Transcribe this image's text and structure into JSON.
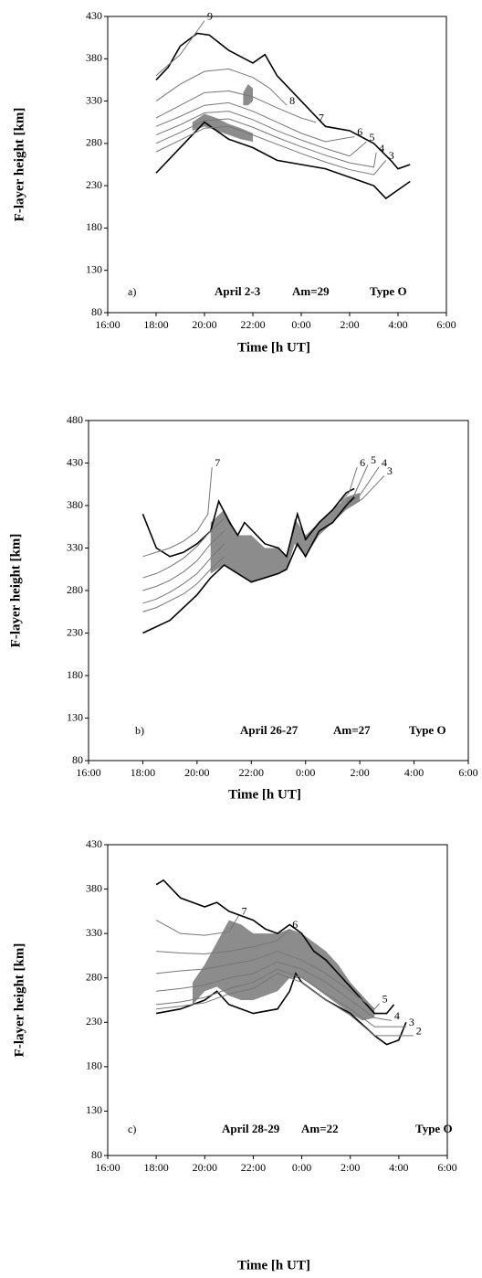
{
  "chart_data": [
    {
      "type": "line",
      "x_label": "Time [h UT]",
      "y_label": "F-layer height [km]",
      "xlim": [
        16,
        30
      ],
      "ylim": [
        80,
        430
      ],
      "xticks": [
        {
          "value": 16,
          "label": "16:00"
        },
        {
          "value": 18,
          "label": "18:00"
        },
        {
          "value": 20,
          "label": "20:00"
        },
        {
          "value": 22,
          "label": "22:00"
        },
        {
          "value": 24,
          "label": "0:00"
        },
        {
          "value": 26,
          "label": "2:00"
        },
        {
          "value": 28,
          "label": "4:00"
        },
        {
          "value": 30,
          "label": "6:00"
        }
      ],
      "yticks": [
        80,
        130,
        180,
        230,
        280,
        330,
        380,
        430
      ],
      "annotations": [
        "a)",
        "April 2-3",
        "Am=29",
        "Type O"
      ],
      "bands": [
        {
          "color": "#8c8c8c",
          "x": [
            19.5,
            20,
            20.5,
            21,
            21.5,
            22
          ],
          "high": [
            305,
            315,
            310,
            303,
            298,
            292
          ],
          "low": [
            295,
            300,
            295,
            290,
            285,
            282
          ]
        },
        {
          "color": "#8c8c8c",
          "x": [
            21.6,
            21.8,
            22
          ],
          "high": [
            340,
            350,
            345
          ],
          "low": [
            325,
            325,
            330
          ]
        }
      ],
      "series": [
        {
          "color": "#000000",
          "x": [
            18,
            18.5,
            19,
            19.7,
            20.2,
            21,
            22,
            22.5,
            23,
            24,
            25,
            26,
            27,
            27.7,
            28,
            28.5
          ],
          "values": [
            355,
            370,
            395,
            410,
            408,
            390,
            375,
            385,
            360,
            330,
            300,
            295,
            280,
            260,
            250,
            255
          ]
        },
        {
          "color": "#000000",
          "x": [
            18,
            19,
            20,
            21,
            22,
            23,
            24,
            25,
            26,
            27,
            27.5,
            28,
            28.5
          ],
          "values": [
            245,
            275,
            305,
            285,
            275,
            260,
            255,
            250,
            240,
            230,
            215,
            225,
            235
          ]
        },
        {
          "name": "9",
          "color": "#777777",
          "x": [
            18,
            19,
            19.5,
            20
          ],
          "values": [
            360,
            385,
            405,
            425
          ]
        },
        {
          "name": "8",
          "color": "#777777",
          "x": [
            18,
            19,
            20,
            21,
            22,
            22.7,
            23.4
          ],
          "values": [
            330,
            350,
            365,
            368,
            358,
            345,
            325
          ]
        },
        {
          "name": "7",
          "color": "#777777",
          "x": [
            18,
            19,
            20,
            21,
            22,
            23,
            24,
            24.6
          ],
          "values": [
            310,
            325,
            340,
            342,
            335,
            322,
            310,
            305
          ]
        },
        {
          "name": "6",
          "color": "#777777",
          "x": [
            18,
            19,
            20,
            21,
            22,
            23,
            24,
            25,
            26.2
          ],
          "values": [
            300,
            312,
            325,
            328,
            318,
            305,
            292,
            282,
            288
          ]
        },
        {
          "name": "5",
          "color": "#777777",
          "x": [
            18,
            19,
            20,
            21,
            22,
            23,
            24,
            25,
            26,
            26.7
          ],
          "values": [
            290,
            302,
            316,
            318,
            308,
            295,
            284,
            274,
            265,
            282
          ]
        },
        {
          "name": "4",
          "color": "#777777",
          "x": [
            18,
            19,
            20,
            21,
            22,
            23,
            24,
            25,
            26,
            27,
            27.1
          ],
          "values": [
            280,
            293,
            307,
            309,
            299,
            287,
            276,
            266,
            257,
            252,
            269
          ]
        },
        {
          "name": "3",
          "color": "#777777",
          "x": [
            18,
            19,
            20,
            21,
            22,
            23,
            24,
            25,
            26,
            27,
            27.5
          ],
          "values": [
            270,
            284,
            298,
            300,
            290,
            279,
            268,
            258,
            249,
            243,
            260
          ]
        }
      ]
    },
    {
      "type": "line",
      "x_label": "Time [h UT]",
      "y_label": "F-layer height [km]",
      "xlim": [
        16,
        30
      ],
      "ylim": [
        80,
        480
      ],
      "xticks": [
        {
          "value": 16,
          "label": "16:00"
        },
        {
          "value": 18,
          "label": "18:00"
        },
        {
          "value": 20,
          "label": "20:00"
        },
        {
          "value": 22,
          "label": "22:00"
        },
        {
          "value": 24,
          "label": "0:00"
        },
        {
          "value": 26,
          "label": "2:00"
        },
        {
          "value": 28,
          "label": "4:00"
        },
        {
          "value": 30,
          "label": "6:00"
        }
      ],
      "yticks": [
        80,
        130,
        180,
        230,
        280,
        330,
        380,
        430,
        480
      ],
      "annotations": [
        "b)",
        "April 26-27",
        "Am=27",
        "Type O"
      ],
      "bands": [
        {
          "color": "#8c8c8c",
          "x": [
            20.5,
            21,
            21.5,
            22,
            22.5,
            23,
            23.3,
            23.6,
            24,
            24.5,
            25,
            25.5,
            26
          ],
          "high": [
            360,
            375,
            345,
            345,
            330,
            330,
            320,
            365,
            345,
            360,
            375,
            390,
            395
          ],
          "low": [
            300,
            310,
            300,
            290,
            295,
            300,
            305,
            335,
            320,
            345,
            360,
            375,
            385
          ]
        }
      ],
      "series": [
        {
          "color": "#000000",
          "x": [
            18,
            18.5,
            19,
            19.5,
            20,
            20.5,
            20.8,
            21.2,
            21.5,
            21.75,
            22.5,
            23,
            23.3,
            23.7,
            24,
            24.5,
            25,
            25.5,
            25.8
          ],
          "values": [
            370,
            330,
            320,
            325,
            335,
            350,
            385,
            360,
            345,
            360,
            335,
            330,
            320,
            370,
            340,
            360,
            375,
            395,
            400
          ]
        },
        {
          "color": "#000000",
          "x": [
            18,
            19,
            20,
            20.5,
            21,
            21.5,
            22,
            22.5,
            23,
            23.3,
            23.7,
            24,
            24.5,
            25,
            25.5,
            25.8
          ],
          "values": [
            230,
            245,
            275,
            295,
            310,
            300,
            290,
            295,
            300,
            305,
            335,
            320,
            350,
            360,
            380,
            390
          ]
        },
        {
          "name": "7",
          "color": "#777777",
          "x": [
            18,
            18.5,
            19,
            19.5,
            20,
            20.4,
            20.55
          ],
          "values": [
            320,
            325,
            330,
            338,
            350,
            370,
            425
          ]
        },
        {
          "name": "6",
          "color": "#777777",
          "x": [
            18,
            18.5,
            19,
            19.5,
            20,
            20.5,
            21,
            23,
            25.3,
            25.6,
            25.9
          ],
          "values": [
            295,
            300,
            308,
            318,
            332,
            350,
            365,
            null,
            385,
            395,
            425
          ]
        },
        {
          "name": "5",
          "color": "#777777",
          "x": [
            18,
            18.5,
            19,
            19.5,
            20,
            20.5,
            21,
            23,
            25.5,
            25.8,
            26.3
          ],
          "values": [
            280,
            285,
            292,
            302,
            315,
            335,
            350,
            null,
            383,
            393,
            428
          ]
        },
        {
          "name": "4",
          "color": "#777777",
          "x": [
            18,
            18.5,
            19,
            19.5,
            20,
            20.5,
            21,
            23,
            25.6,
            26,
            26.7
          ],
          "values": [
            265,
            270,
            278,
            288,
            300,
            318,
            335,
            null,
            382,
            392,
            425
          ]
        },
        {
          "name": "3",
          "color": "#777777",
          "x": [
            18,
            18.5,
            19,
            19.5,
            20,
            20.5,
            21,
            23,
            25.7,
            26.1,
            26.9
          ],
          "values": [
            255,
            260,
            268,
            276,
            288,
            305,
            320,
            null,
            380,
            388,
            415
          ]
        }
      ]
    },
    {
      "type": "line",
      "x_label": "Time [h UT]",
      "y_label": "F-layer height [km]",
      "xlim": [
        16,
        30
      ],
      "ylim": [
        80,
        430
      ],
      "xticks": [
        {
          "value": 16,
          "label": "16:00"
        },
        {
          "value": 18,
          "label": "18:00"
        },
        {
          "value": 20,
          "label": "20:00"
        },
        {
          "value": 22,
          "label": "22:00"
        },
        {
          "value": 24,
          "label": "0:00"
        },
        {
          "value": 26,
          "label": "2:00"
        },
        {
          "value": 28,
          "label": "4:00"
        },
        {
          "value": 30,
          "label": "6:00"
        }
      ],
      "yticks": [
        80,
        130,
        180,
        230,
        280,
        330,
        380,
        430
      ],
      "annotations": [
        "c)",
        "April 28-29",
        "Am=22",
        "Type O"
      ],
      "bands": [
        {
          "color": "#8c8c8c",
          "x": [
            19.5,
            20,
            20.5,
            21,
            21.5,
            22,
            22.5,
            23,
            23.5,
            24,
            24.5,
            25,
            25.5,
            26,
            26.5,
            27
          ],
          "high": [
            275,
            295,
            320,
            345,
            340,
            330,
            330,
            330,
            335,
            330,
            320,
            310,
            295,
            275,
            260,
            245
          ],
          "low": [
            250,
            265,
            270,
            260,
            255,
            255,
            260,
            265,
            280,
            280,
            270,
            260,
            250,
            240,
            232,
            235
          ]
        }
      ],
      "series": [
        {
          "color": "#000000",
          "x": [
            18,
            18.3,
            19,
            20,
            20.5,
            21,
            22,
            22.5,
            23,
            23.5,
            24,
            24.5,
            25,
            25.5,
            26,
            26.5,
            27,
            27.5,
            27.8
          ],
          "values": [
            385,
            390,
            370,
            360,
            365,
            355,
            345,
            335,
            330,
            340,
            330,
            310,
            300,
            285,
            270,
            255,
            240,
            240,
            250
          ]
        },
        {
          "color": "#000000",
          "x": [
            18,
            19,
            20,
            20.5,
            21,
            22,
            23,
            23.5,
            23.75,
            24,
            24.5,
            25,
            26,
            27,
            27.5,
            28,
            28.3
          ],
          "values": [
            240,
            245,
            255,
            265,
            250,
            240,
            245,
            265,
            285,
            275,
            265,
            255,
            240,
            215,
            205,
            210,
            230
          ]
        },
        {
          "name": "7",
          "color": "#777777",
          "x": [
            18,
            19,
            20,
            21,
            21.4
          ],
          "values": [
            345,
            330,
            328,
            332,
            350
          ]
        },
        {
          "name": "6",
          "color": "#777777",
          "x": [
            18,
            19,
            20,
            21,
            22,
            23,
            23.5
          ],
          "values": [
            310,
            308,
            307,
            310,
            315,
            322,
            335
          ]
        },
        {
          "name": "5",
          "color": "#777777",
          "x": [
            18,
            19,
            20,
            21,
            22,
            23,
            24,
            25,
            26,
            27,
            27.2
          ],
          "values": [
            285,
            288,
            290,
            295,
            300,
            310,
            300,
            285,
            265,
            245,
            251
          ]
        },
        {
          "name": "4",
          "color": "#777777",
          "x": [
            18,
            19,
            20,
            21,
            22,
            23,
            24,
            25,
            26,
            27,
            27.7
          ],
          "values": [
            265,
            268,
            272,
            280,
            285,
            298,
            290,
            275,
            255,
            235,
            232
          ]
        },
        {
          "name": "3",
          "color": "#777777",
          "x": [
            18,
            19,
            20,
            21,
            22,
            23,
            24,
            25,
            26,
            27,
            28.3
          ],
          "values": [
            250,
            253,
            258,
            268,
            275,
            290,
            280,
            262,
            245,
            225,
            225
          ]
        },
        {
          "name": "2",
          "color": "#777777",
          "x": [
            18,
            19,
            20,
            21,
            22,
            23,
            24,
            25,
            26,
            27,
            28.6
          ],
          "values": [
            245,
            248,
            252,
            262,
            268,
            285,
            275,
            255,
            238,
            215,
            215
          ]
        }
      ]
    }
  ]
}
